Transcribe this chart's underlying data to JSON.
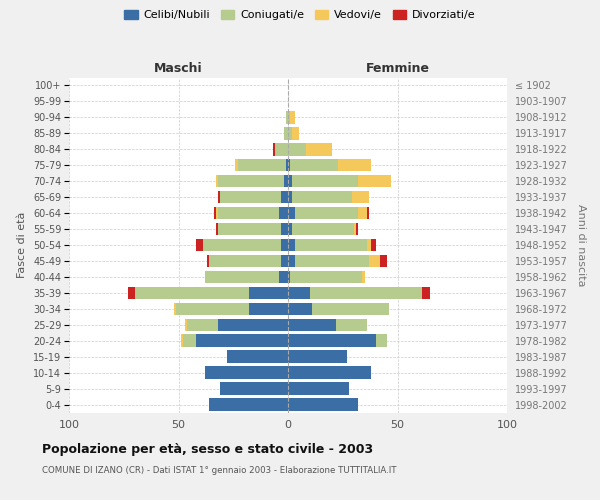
{
  "age_groups": [
    "0-4",
    "5-9",
    "10-14",
    "15-19",
    "20-24",
    "25-29",
    "30-34",
    "35-39",
    "40-44",
    "45-49",
    "50-54",
    "55-59",
    "60-64",
    "65-69",
    "70-74",
    "75-79",
    "80-84",
    "85-89",
    "90-94",
    "95-99",
    "100+"
  ],
  "birth_years": [
    "1998-2002",
    "1993-1997",
    "1988-1992",
    "1983-1987",
    "1978-1982",
    "1973-1977",
    "1968-1972",
    "1963-1967",
    "1958-1962",
    "1953-1957",
    "1948-1952",
    "1943-1947",
    "1938-1942",
    "1933-1937",
    "1928-1932",
    "1923-1927",
    "1918-1922",
    "1913-1917",
    "1908-1912",
    "1903-1907",
    "≤ 1902"
  ],
  "male": {
    "celibi": [
      36,
      31,
      38,
      28,
      42,
      32,
      18,
      18,
      4,
      3,
      3,
      3,
      4,
      3,
      2,
      1,
      0,
      0,
      0,
      0,
      0
    ],
    "coniugati": [
      0,
      0,
      0,
      0,
      6,
      14,
      33,
      52,
      34,
      33,
      36,
      29,
      28,
      28,
      30,
      22,
      6,
      2,
      1,
      0,
      0
    ],
    "vedovi": [
      0,
      0,
      0,
      0,
      1,
      1,
      1,
      0,
      0,
      0,
      0,
      0,
      1,
      0,
      1,
      1,
      0,
      0,
      0,
      0,
      0
    ],
    "divorziati": [
      0,
      0,
      0,
      0,
      0,
      0,
      0,
      3,
      0,
      1,
      3,
      1,
      1,
      1,
      0,
      0,
      1,
      0,
      0,
      0,
      0
    ]
  },
  "female": {
    "nubili": [
      32,
      28,
      38,
      27,
      40,
      22,
      11,
      10,
      1,
      3,
      3,
      2,
      3,
      2,
      2,
      1,
      0,
      0,
      0,
      0,
      0
    ],
    "coniugate": [
      0,
      0,
      0,
      0,
      5,
      14,
      35,
      51,
      33,
      34,
      33,
      28,
      29,
      27,
      30,
      22,
      8,
      2,
      1,
      0,
      0
    ],
    "vedove": [
      0,
      0,
      0,
      0,
      0,
      0,
      0,
      0,
      1,
      5,
      2,
      1,
      4,
      8,
      15,
      15,
      12,
      3,
      2,
      0,
      0
    ],
    "divorziate": [
      0,
      0,
      0,
      0,
      0,
      0,
      0,
      4,
      0,
      3,
      2,
      1,
      1,
      0,
      0,
      0,
      0,
      0,
      0,
      0,
      0
    ]
  },
  "colors": {
    "celibi": "#3a6ea5",
    "coniugati": "#b5cc8e",
    "vedovi": "#f5c85c",
    "divorziati": "#cc2222"
  },
  "legend_labels": [
    "Celibi/Nubili",
    "Coniugati/e",
    "Vedovi/e",
    "Divorziati/e"
  ],
  "xlabel_left": "Maschi",
  "xlabel_right": "Femmine",
  "ylabel_left": "Fasce di età",
  "ylabel_right": "Anni di nascita",
  "title": "Popolazione per età, sesso e stato civile - 2003",
  "subtitle": "COMUNE DI IZANO (CR) - Dati ISTAT 1° gennaio 2003 - Elaborazione TUTTITALIA.IT",
  "xlim": 100,
  "bg_color": "#f0f0f0",
  "plot_bg": "#ffffff",
  "grid_color": "#cccccc"
}
